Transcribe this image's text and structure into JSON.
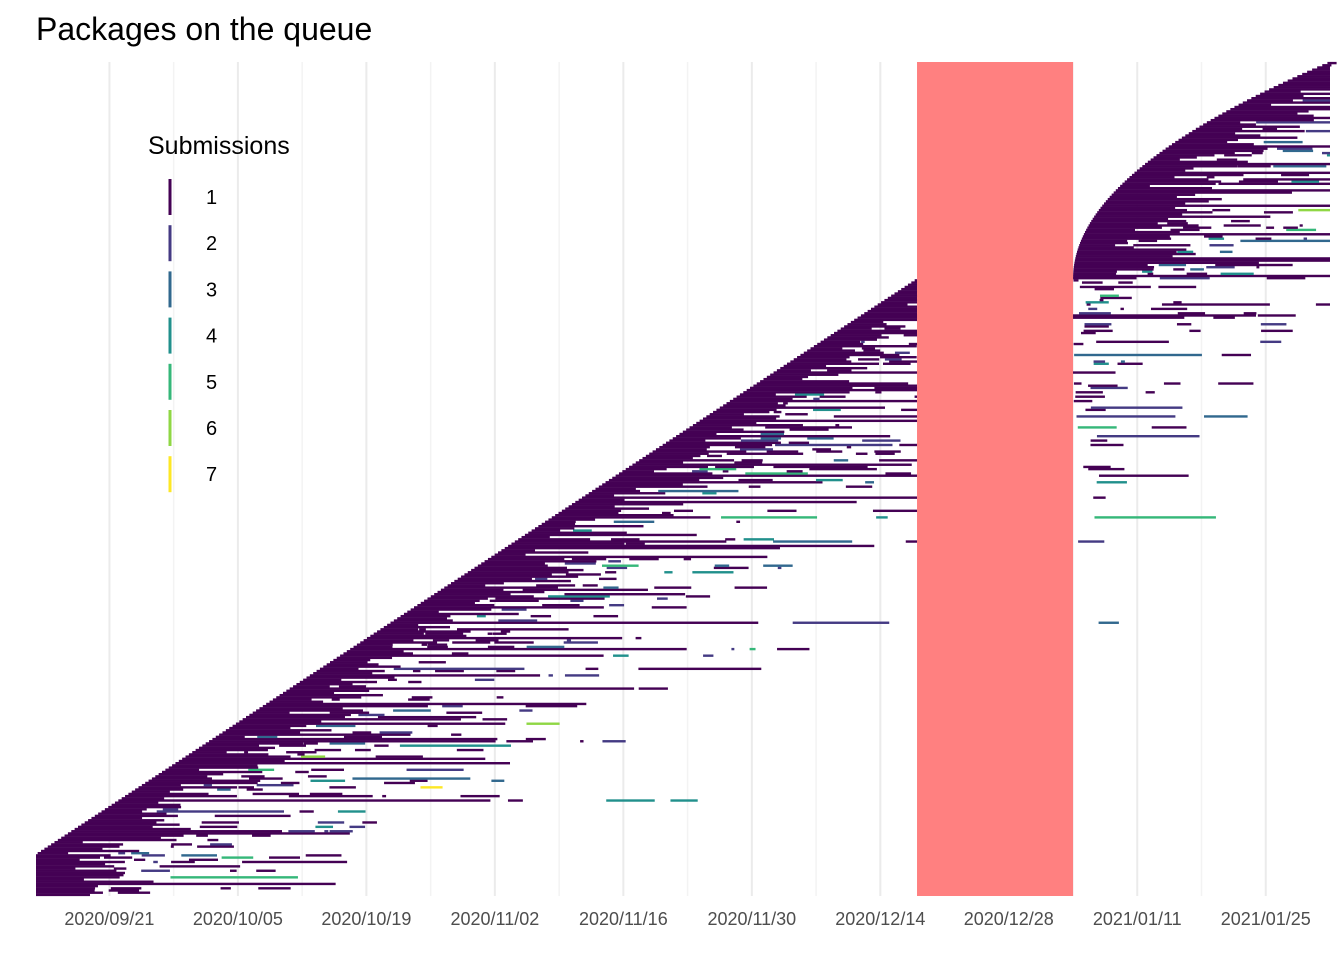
{
  "chart_data": {
    "type": "line",
    "title": "Packages on the queue",
    "xlabel": "",
    "ylabel": "",
    "x_axis": {
      "type": "date",
      "range": [
        "2020-09-13",
        "2021-02-01"
      ],
      "ticks": [
        "2020/09/21",
        "2020/10/05",
        "2020/10/19",
        "2020/11/02",
        "2020/11/16",
        "2020/11/30",
        "2020/12/14",
        "2020/12/28",
        "2021/01/11",
        "2021/01/25"
      ]
    },
    "y_axis": {
      "visible": false
    },
    "grid": "vertical",
    "legend": {
      "title": "Submissions",
      "position": "top-left",
      "entries": [
        {
          "label": "1",
          "color": "#440154"
        },
        {
          "label": "2",
          "color": "#443A83"
        },
        {
          "label": "3",
          "color": "#31688E"
        },
        {
          "label": "4",
          "color": "#21908C"
        },
        {
          "label": "5",
          "color": "#35B779"
        },
        {
          "label": "6",
          "color": "#8FD744"
        },
        {
          "label": "7",
          "color": "#FDE725"
        }
      ]
    },
    "highlight_band": {
      "x_start": "2020-12-18",
      "x_end": "2021-01-04",
      "color": "#FF8080"
    },
    "queue_profile": [
      {
        "x": "2020-09-13",
        "y": 5
      },
      {
        "x": "2020-12-18",
        "y": 74
      },
      {
        "x": "2021-01-04",
        "y": 74
      },
      {
        "x": "2021-02-01",
        "y": 100
      }
    ],
    "series_note": "Each horizontal segment is one package's time on the queue, colored by number of submissions (1–7)."
  }
}
